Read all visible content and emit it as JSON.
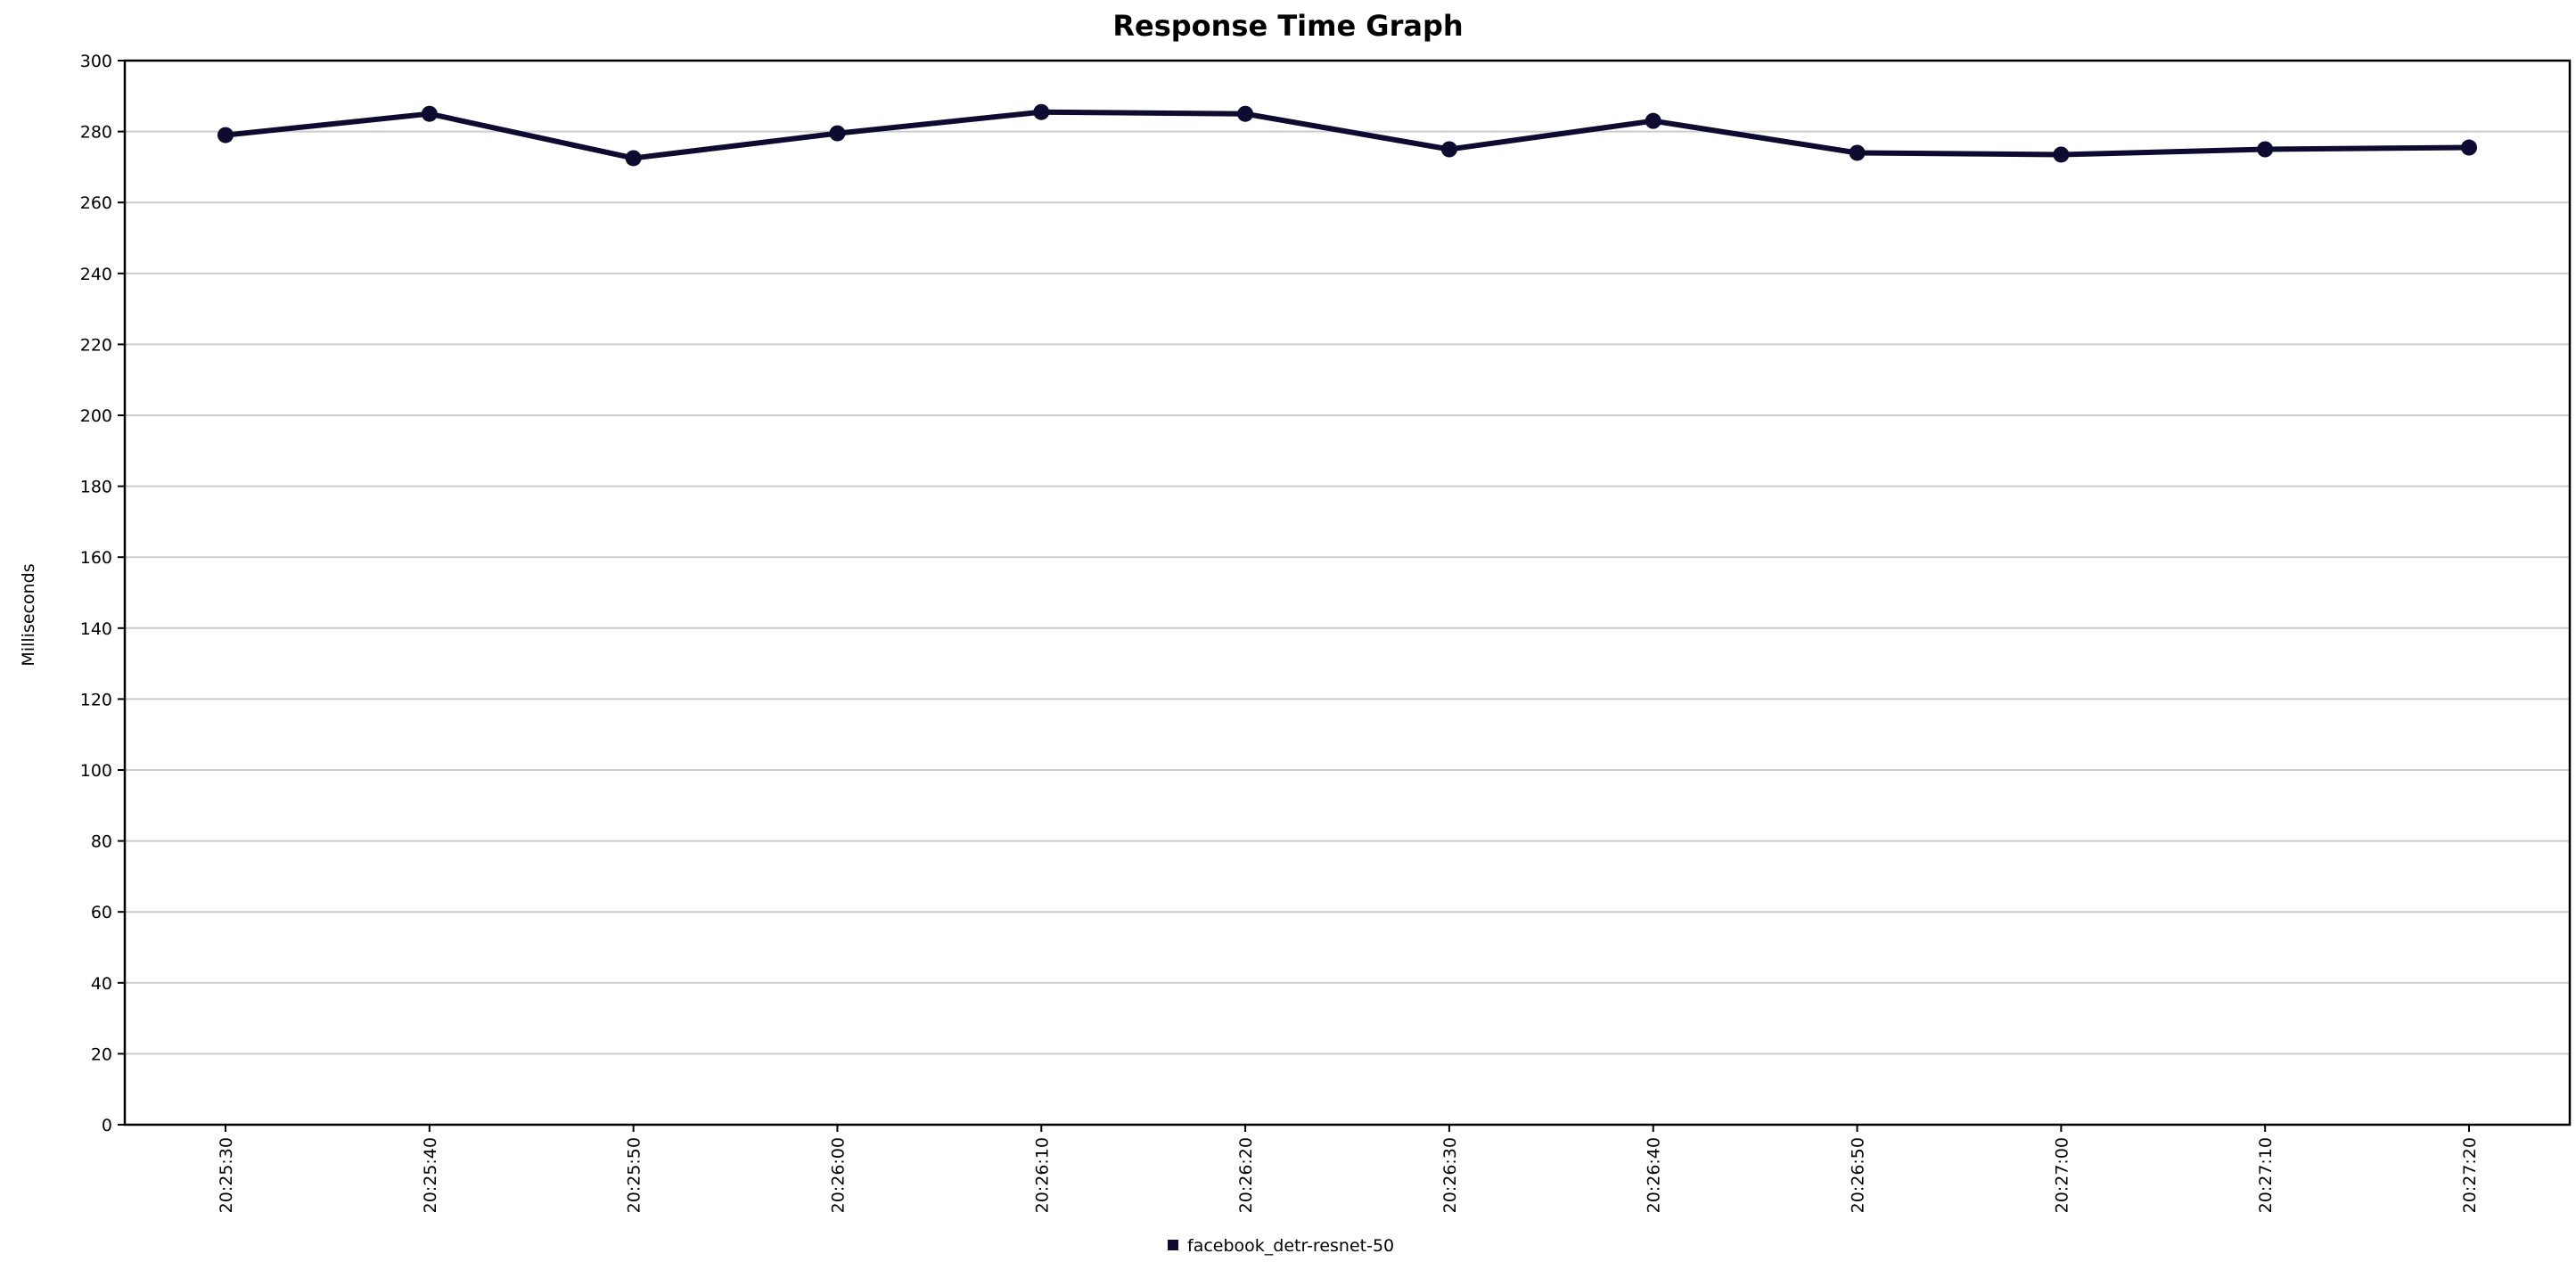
{
  "chart_data": {
    "type": "line",
    "title": "Response Time Graph",
    "xlabel": "",
    "ylabel": "Milliseconds",
    "categories": [
      "20:25:30",
      "20:25:40",
      "20:25:50",
      "20:26:00",
      "20:26:10",
      "20:26:20",
      "20:26:30",
      "20:26:40",
      "20:26:50",
      "20:27:00",
      "20:27:10",
      "20:27:20"
    ],
    "series": [
      {
        "name": "facebook_detr-resnet-50",
        "values": [
          279,
          285,
          272.5,
          279.5,
          285.5,
          285,
          275,
          283,
          274,
          273.5,
          275,
          275.5
        ]
      }
    ],
    "ylim": [
      0,
      300
    ],
    "yticks": [
      0,
      20,
      40,
      60,
      80,
      100,
      120,
      140,
      160,
      180,
      200,
      220,
      240,
      260,
      280,
      300
    ],
    "grid": true,
    "legend_position": "bottom-center",
    "colors": {
      "series": "#0d0b30",
      "grid": "#cccccc",
      "axis": "#000000"
    }
  }
}
